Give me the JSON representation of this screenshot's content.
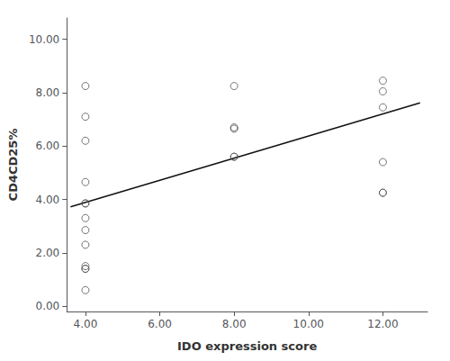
{
  "chart_data": {
    "type": "scatter",
    "xlabel": "IDO expression score",
    "ylabel": "CD4CD25%",
    "xlim": [
      3.5,
      13.2
    ],
    "ylim": [
      -0.2,
      10.8
    ],
    "xticks": [
      {
        "value": 4.0,
        "label": "4.00"
      },
      {
        "value": 6.0,
        "label": "6.00"
      },
      {
        "value": 8.0,
        "label": "8.00"
      },
      {
        "value": 10.0,
        "label": "10.00"
      },
      {
        "value": 12.0,
        "label": "12.00"
      }
    ],
    "yticks": [
      {
        "value": 0.0,
        "label": "0.00"
      },
      {
        "value": 2.0,
        "label": "2.00"
      },
      {
        "value": 4.0,
        "label": "4.00"
      },
      {
        "value": 6.0,
        "label": "6.00"
      },
      {
        "value": 8.0,
        "label": "8.00"
      },
      {
        "value": 10.0,
        "label": "10.00"
      }
    ],
    "grid": false,
    "series": [
      {
        "type": "scatter",
        "marker": "circle",
        "color": "#555555",
        "x": [
          4,
          4,
          4,
          4,
          4,
          4,
          4,
          4,
          4,
          4,
          4,
          4,
          4,
          8,
          8,
          8,
          8,
          8,
          12,
          12,
          12,
          12,
          12,
          12
        ],
        "values": [
          8.25,
          7.1,
          6.2,
          4.65,
          3.85,
          3.85,
          3.3,
          2.85,
          2.3,
          1.5,
          1.4,
          1.4,
          0.6,
          8.25,
          6.7,
          6.65,
          5.6,
          5.6,
          8.45,
          8.05,
          7.45,
          5.4,
          4.25,
          4.25
        ]
      },
      {
        "type": "line",
        "line_style": "solid",
        "color": "#111111",
        "x": [
          3.6,
          13.0
        ],
        "values": [
          3.72,
          7.62
        ]
      }
    ]
  }
}
